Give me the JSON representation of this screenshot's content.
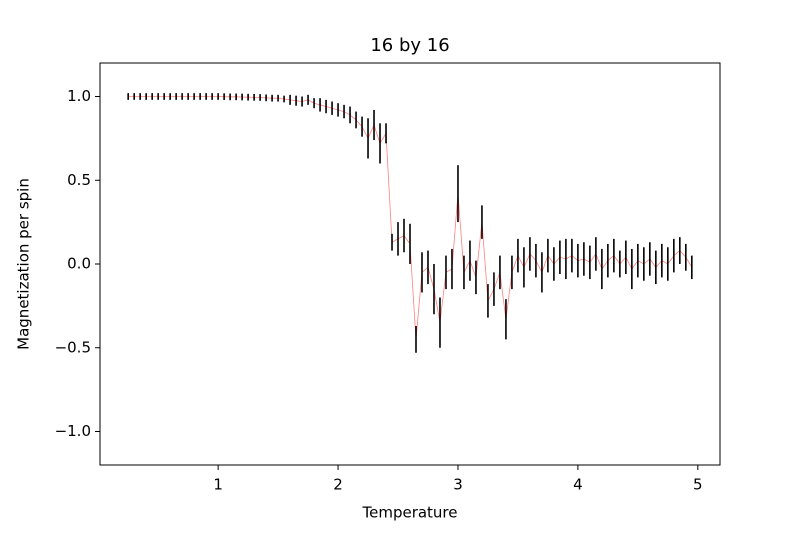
{
  "chart_data": {
    "type": "errorbar",
    "title": "16 by 16",
    "xlabel": "Temperature",
    "ylabel": "Magnetization per spin",
    "x": [
      0.25,
      0.3,
      0.35,
      0.4,
      0.45,
      0.5,
      0.55,
      0.6,
      0.65,
      0.7,
      0.75,
      0.8,
      0.85,
      0.9,
      0.95,
      1.0,
      1.05,
      1.1,
      1.15,
      1.2,
      1.25,
      1.3,
      1.35,
      1.4,
      1.45,
      1.5,
      1.55,
      1.6,
      1.65,
      1.7,
      1.75,
      1.8,
      1.85,
      1.9,
      1.95,
      2.0,
      2.05,
      2.1,
      2.15,
      2.2,
      2.25,
      2.3,
      2.35,
      2.4,
      2.45,
      2.5,
      2.55,
      2.6,
      2.65,
      2.7,
      2.75,
      2.8,
      2.85,
      2.9,
      2.95,
      3.0,
      3.05,
      3.1,
      3.15,
      3.2,
      3.25,
      3.3,
      3.35,
      3.4,
      3.45,
      3.5,
      3.55,
      3.6,
      3.65,
      3.7,
      3.75,
      3.8,
      3.85,
      3.9,
      3.95,
      4.0,
      4.05,
      4.1,
      4.15,
      4.2,
      4.25,
      4.3,
      4.35,
      4.4,
      4.45,
      4.5,
      4.55,
      4.6,
      4.65,
      4.7,
      4.75,
      4.8,
      4.85,
      4.9,
      4.95
    ],
    "series": [
      {
        "line_color": "#ff8080",
        "errorbar_color": "#000000",
        "values": [
          1.0,
          1.0,
          1.0,
          1.0,
          1.0,
          1.0,
          1.0,
          1.0,
          1.0,
          1.0,
          1.0,
          1.0,
          1.0,
          1.0,
          1.0,
          1.0,
          0.999,
          0.998,
          0.998,
          0.997,
          0.996,
          0.995,
          0.994,
          0.992,
          0.99,
          0.99,
          0.985,
          0.98,
          0.975,
          0.97,
          0.98,
          0.96,
          0.95,
          0.94,
          0.93,
          0.92,
          0.91,
          0.89,
          0.86,
          0.82,
          0.75,
          0.83,
          0.72,
          0.78,
          0.13,
          0.15,
          0.17,
          0.12,
          -0.45,
          -0.05,
          -0.02,
          -0.15,
          -0.35,
          -0.05,
          -0.03,
          0.42,
          -0.05,
          0.02,
          -0.08,
          0.25,
          -0.22,
          -0.15,
          -0.05,
          -0.33,
          -0.05,
          0.05,
          -0.02,
          0.06,
          0.02,
          -0.05,
          0.05,
          0.0,
          0.04,
          0.03,
          0.05,
          0.02,
          0.03,
          0.01,
          0.06,
          -0.03,
          0.02,
          0.05,
          0.0,
          0.04,
          -0.03,
          0.02,
          0.0,
          0.03,
          -0.02,
          0.02,
          0.0,
          0.05,
          0.08,
          0.04,
          -0.02
        ],
        "errors": [
          0.02,
          0.02,
          0.02,
          0.02,
          0.02,
          0.02,
          0.02,
          0.02,
          0.02,
          0.02,
          0.02,
          0.02,
          0.02,
          0.02,
          0.02,
          0.02,
          0.02,
          0.02,
          0.02,
          0.02,
          0.02,
          0.02,
          0.02,
          0.02,
          0.02,
          0.02,
          0.02,
          0.03,
          0.03,
          0.03,
          0.03,
          0.03,
          0.04,
          0.04,
          0.04,
          0.04,
          0.04,
          0.05,
          0.05,
          0.06,
          0.12,
          0.09,
          0.12,
          0.06,
          0.05,
          0.1,
          0.1,
          0.12,
          0.08,
          0.12,
          0.1,
          0.15,
          0.15,
          0.1,
          0.12,
          0.17,
          0.1,
          0.12,
          0.1,
          0.1,
          0.1,
          0.1,
          0.1,
          0.12,
          0.1,
          0.1,
          0.12,
          0.1,
          0.1,
          0.12,
          0.1,
          0.1,
          0.1,
          0.12,
          0.1,
          0.1,
          0.1,
          0.1,
          0.1,
          0.12,
          0.1,
          0.1,
          0.08,
          0.1,
          0.12,
          0.1,
          0.1,
          0.1,
          0.1,
          0.1,
          0.1,
          0.1,
          0.08,
          0.08,
          0.07
        ]
      }
    ],
    "xlim": [
      0.015,
      5.185
    ],
    "ylim": [
      -1.2,
      1.2
    ],
    "xticks": [
      1,
      2,
      3,
      4,
      5
    ],
    "yticks": [
      {
        "value": -1.0,
        "label": "−1.0"
      },
      {
        "value": -0.5,
        "label": "−0.5"
      },
      {
        "value": 0.0,
        "label": "0.0"
      },
      {
        "value": 0.5,
        "label": "0.5"
      },
      {
        "value": 1.0,
        "label": "1.0"
      }
    ]
  }
}
